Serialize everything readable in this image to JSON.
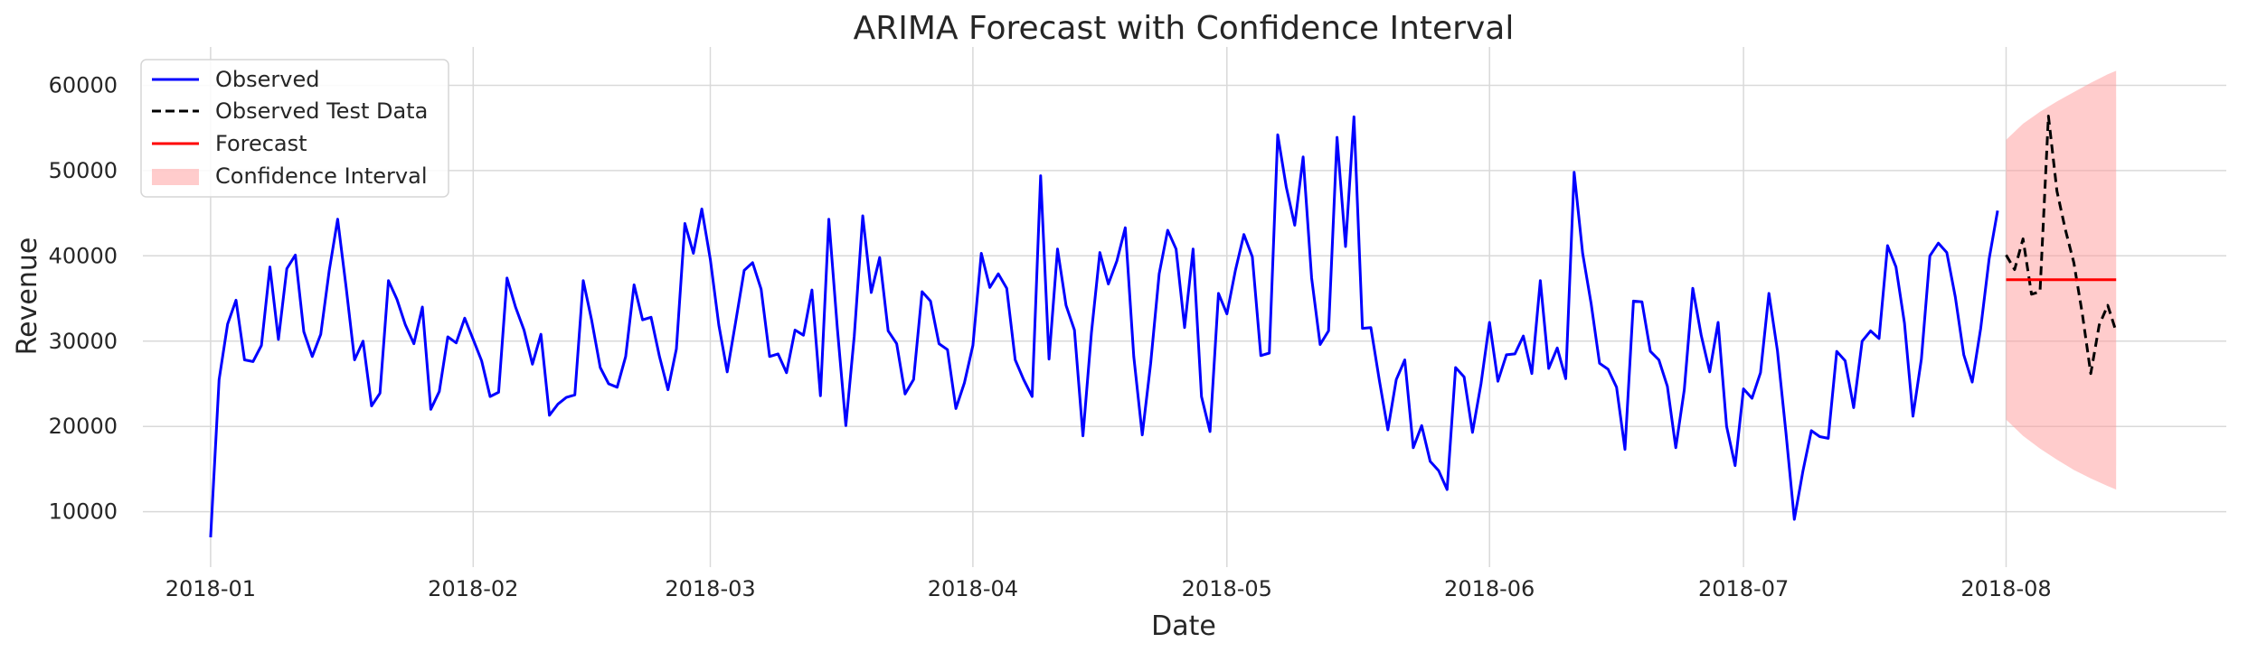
{
  "chart_data": {
    "type": "line",
    "title": "ARIMA Forecast with Confidence Interval",
    "xlabel": "Date",
    "ylabel": "Revenue",
    "x_range": [
      "2017-12-24",
      "2018-08-27"
    ],
    "ylim": [
      3500,
      64500
    ],
    "grid": true,
    "legend_position": "top-left",
    "x_ticks": [
      {
        "date": "2018-01-01",
        "label": "2018-01"
      },
      {
        "date": "2018-02-01",
        "label": "2018-02"
      },
      {
        "date": "2018-03-01",
        "label": "2018-03"
      },
      {
        "date": "2018-04-01",
        "label": "2018-04"
      },
      {
        "date": "2018-05-01",
        "label": "2018-05"
      },
      {
        "date": "2018-06-01",
        "label": "2018-06"
      },
      {
        "date": "2018-07-01",
        "label": "2018-07"
      },
      {
        "date": "2018-08-01",
        "label": "2018-08"
      }
    ],
    "y_ticks": [
      10000,
      20000,
      30000,
      40000,
      50000,
      60000
    ],
    "y_tick_labels": [
      "10000",
      "20000",
      "30000",
      "40000",
      "50000",
      "60000"
    ],
    "legend": [
      {
        "label": "Observed",
        "style": "solid-line",
        "color": "#0000ff"
      },
      {
        "label": "Observed Test Data",
        "style": "dashed-line",
        "color": "#000000"
      },
      {
        "label": "Forecast",
        "style": "solid-line",
        "color": "#ff0000"
      },
      {
        "label": "Confidence Interval",
        "style": "patch",
        "color": "#ff9999"
      }
    ],
    "series": [
      {
        "name": "Observed",
        "color": "#0000ff",
        "style": "solid",
        "points": [
          [
            "2018-01-01",
            7000
          ],
          [
            "2018-01-02",
            25500
          ],
          [
            "2018-01-03",
            32000
          ],
          [
            "2018-01-04",
            34800
          ],
          [
            "2018-01-05",
            27800
          ],
          [
            "2018-01-06",
            27600
          ],
          [
            "2018-01-07",
            29500
          ],
          [
            "2018-01-08",
            38700
          ],
          [
            "2018-01-09",
            30200
          ],
          [
            "2018-01-10",
            38500
          ],
          [
            "2018-01-11",
            40100
          ],
          [
            "2018-01-12",
            31100
          ],
          [
            "2018-01-13",
            28200
          ],
          [
            "2018-01-14",
            30800
          ],
          [
            "2018-01-15",
            38200
          ],
          [
            "2018-01-16",
            44300
          ],
          [
            "2018-01-17",
            36300
          ],
          [
            "2018-01-18",
            27800
          ],
          [
            "2018-01-19",
            30000
          ],
          [
            "2018-01-20",
            22400
          ],
          [
            "2018-01-21",
            23900
          ],
          [
            "2018-01-22",
            37100
          ],
          [
            "2018-01-23",
            34900
          ],
          [
            "2018-01-24",
            31900
          ],
          [
            "2018-01-25",
            29700
          ],
          [
            "2018-01-26",
            34000
          ],
          [
            "2018-01-27",
            22000
          ],
          [
            "2018-01-28",
            24100
          ],
          [
            "2018-01-29",
            30500
          ],
          [
            "2018-01-30",
            29800
          ],
          [
            "2018-01-31",
            32700
          ],
          [
            "2018-02-01",
            30200
          ],
          [
            "2018-02-02",
            27700
          ],
          [
            "2018-02-03",
            23500
          ],
          [
            "2018-02-04",
            24000
          ],
          [
            "2018-02-05",
            37400
          ],
          [
            "2018-02-06",
            34000
          ],
          [
            "2018-02-07",
            31300
          ],
          [
            "2018-02-08",
            27300
          ],
          [
            "2018-02-09",
            30800
          ],
          [
            "2018-02-10",
            21300
          ],
          [
            "2018-02-11",
            22600
          ],
          [
            "2018-02-12",
            23400
          ],
          [
            "2018-02-13",
            23700
          ],
          [
            "2018-02-14",
            37100
          ],
          [
            "2018-02-15",
            32400
          ],
          [
            "2018-02-16",
            26900
          ],
          [
            "2018-02-17",
            25000
          ],
          [
            "2018-02-18",
            24600
          ],
          [
            "2018-02-19",
            28200
          ],
          [
            "2018-02-20",
            36600
          ],
          [
            "2018-02-21",
            32500
          ],
          [
            "2018-02-22",
            32800
          ],
          [
            "2018-02-23",
            28200
          ],
          [
            "2018-02-24",
            24300
          ],
          [
            "2018-02-25",
            29100
          ],
          [
            "2018-02-26",
            43800
          ],
          [
            "2018-02-27",
            40300
          ],
          [
            "2018-02-28",
            45500
          ],
          [
            "2018-03-01",
            39600
          ],
          [
            "2018-03-02",
            31900
          ],
          [
            "2018-03-03",
            26400
          ],
          [
            "2018-03-04",
            32300
          ],
          [
            "2018-03-05",
            38300
          ],
          [
            "2018-03-06",
            39200
          ],
          [
            "2018-03-07",
            36100
          ],
          [
            "2018-03-08",
            28200
          ],
          [
            "2018-03-09",
            28500
          ],
          [
            "2018-03-10",
            26300
          ],
          [
            "2018-03-11",
            31300
          ],
          [
            "2018-03-12",
            30700
          ],
          [
            "2018-03-13",
            36000
          ],
          [
            "2018-03-14",
            23600
          ],
          [
            "2018-03-15",
            44300
          ],
          [
            "2018-03-16",
            31500
          ],
          [
            "2018-03-17",
            20100
          ],
          [
            "2018-03-18",
            30600
          ],
          [
            "2018-03-19",
            44700
          ],
          [
            "2018-03-20",
            35700
          ],
          [
            "2018-03-21",
            39800
          ],
          [
            "2018-03-22",
            31200
          ],
          [
            "2018-03-23",
            29700
          ],
          [
            "2018-03-24",
            23800
          ],
          [
            "2018-03-25",
            25500
          ],
          [
            "2018-03-26",
            35800
          ],
          [
            "2018-03-27",
            34700
          ],
          [
            "2018-03-28",
            29700
          ],
          [
            "2018-03-29",
            29000
          ],
          [
            "2018-03-30",
            22100
          ],
          [
            "2018-03-31",
            25100
          ],
          [
            "2018-04-01",
            29500
          ],
          [
            "2018-04-02",
            40300
          ],
          [
            "2018-04-03",
            36300
          ],
          [
            "2018-04-04",
            37900
          ],
          [
            "2018-04-05",
            36200
          ],
          [
            "2018-04-06",
            27800
          ],
          [
            "2018-04-07",
            25500
          ],
          [
            "2018-04-08",
            23500
          ],
          [
            "2018-04-09",
            49400
          ],
          [
            "2018-04-10",
            27900
          ],
          [
            "2018-04-11",
            40800
          ],
          [
            "2018-04-12",
            34200
          ],
          [
            "2018-04-13",
            31300
          ],
          [
            "2018-04-14",
            18900
          ],
          [
            "2018-04-15",
            31000
          ],
          [
            "2018-04-16",
            40400
          ],
          [
            "2018-04-17",
            36700
          ],
          [
            "2018-04-18",
            39400
          ],
          [
            "2018-04-19",
            43300
          ],
          [
            "2018-04-20",
            28200
          ],
          [
            "2018-04-21",
            19000
          ],
          [
            "2018-04-22",
            27400
          ],
          [
            "2018-04-23",
            37900
          ],
          [
            "2018-04-24",
            43000
          ],
          [
            "2018-04-25",
            40800
          ],
          [
            "2018-04-26",
            31600
          ],
          [
            "2018-04-27",
            40800
          ],
          [
            "2018-04-28",
            23500
          ],
          [
            "2018-04-29",
            19400
          ],
          [
            "2018-04-30",
            35600
          ],
          [
            "2018-05-01",
            33200
          ],
          [
            "2018-05-02",
            38300
          ],
          [
            "2018-05-03",
            42500
          ],
          [
            "2018-05-04",
            39900
          ],
          [
            "2018-05-05",
            28300
          ],
          [
            "2018-05-06",
            28600
          ],
          [
            "2018-05-07",
            54200
          ],
          [
            "2018-05-08",
            48100
          ],
          [
            "2018-05-09",
            43600
          ],
          [
            "2018-05-10",
            51600
          ],
          [
            "2018-05-11",
            37400
          ],
          [
            "2018-05-12",
            29600
          ],
          [
            "2018-05-13",
            31200
          ],
          [
            "2018-05-14",
            53900
          ],
          [
            "2018-05-15",
            41100
          ],
          [
            "2018-05-16",
            56300
          ],
          [
            "2018-05-17",
            31500
          ],
          [
            "2018-05-18",
            31600
          ],
          [
            "2018-05-19",
            25400
          ],
          [
            "2018-05-20",
            19600
          ],
          [
            "2018-05-21",
            25500
          ],
          [
            "2018-05-22",
            27800
          ],
          [
            "2018-05-23",
            17500
          ],
          [
            "2018-05-24",
            20100
          ],
          [
            "2018-05-25",
            15900
          ],
          [
            "2018-05-26",
            14800
          ],
          [
            "2018-05-27",
            12600
          ],
          [
            "2018-05-28",
            26900
          ],
          [
            "2018-05-29",
            25800
          ],
          [
            "2018-05-30",
            19300
          ],
          [
            "2018-05-31",
            25000
          ],
          [
            "2018-06-01",
            32200
          ],
          [
            "2018-06-02",
            25300
          ],
          [
            "2018-06-03",
            28400
          ],
          [
            "2018-06-04",
            28500
          ],
          [
            "2018-06-05",
            30600
          ],
          [
            "2018-06-06",
            26200
          ],
          [
            "2018-06-07",
            37100
          ],
          [
            "2018-06-08",
            26800
          ],
          [
            "2018-06-09",
            29200
          ],
          [
            "2018-06-10",
            25600
          ],
          [
            "2018-06-11",
            49800
          ],
          [
            "2018-06-12",
            40300
          ],
          [
            "2018-06-13",
            34400
          ],
          [
            "2018-06-14",
            27400
          ],
          [
            "2018-06-15",
            26700
          ],
          [
            "2018-06-16",
            24600
          ],
          [
            "2018-06-17",
            17300
          ],
          [
            "2018-06-18",
            34700
          ],
          [
            "2018-06-19",
            34600
          ],
          [
            "2018-06-20",
            28800
          ],
          [
            "2018-06-21",
            27800
          ],
          [
            "2018-06-22",
            24700
          ],
          [
            "2018-06-23",
            17500
          ],
          [
            "2018-06-24",
            24300
          ],
          [
            "2018-06-25",
            36200
          ],
          [
            "2018-06-26",
            30700
          ],
          [
            "2018-06-27",
            26400
          ],
          [
            "2018-06-28",
            32200
          ],
          [
            "2018-06-29",
            20000
          ],
          [
            "2018-06-30",
            15400
          ],
          [
            "2018-07-01",
            24400
          ],
          [
            "2018-07-02",
            23300
          ],
          [
            "2018-07-03",
            26300
          ],
          [
            "2018-07-04",
            35600
          ],
          [
            "2018-07-05",
            28900
          ],
          [
            "2018-07-06",
            19300
          ],
          [
            "2018-07-07",
            9100
          ],
          [
            "2018-07-08",
            14700
          ],
          [
            "2018-07-09",
            19500
          ],
          [
            "2018-07-10",
            18800
          ],
          [
            "2018-07-11",
            18600
          ],
          [
            "2018-07-12",
            28800
          ],
          [
            "2018-07-13",
            27700
          ],
          [
            "2018-07-14",
            22200
          ],
          [
            "2018-07-15",
            30000
          ],
          [
            "2018-07-16",
            31200
          ],
          [
            "2018-07-17",
            30300
          ],
          [
            "2018-07-18",
            41200
          ],
          [
            "2018-07-19",
            38700
          ],
          [
            "2018-07-20",
            32100
          ],
          [
            "2018-07-21",
            21200
          ],
          [
            "2018-07-22",
            27900
          ],
          [
            "2018-07-23",
            40000
          ],
          [
            "2018-07-24",
            41500
          ],
          [
            "2018-07-25",
            40400
          ],
          [
            "2018-07-26",
            35200
          ],
          [
            "2018-07-27",
            28400
          ],
          [
            "2018-07-28",
            25200
          ],
          [
            "2018-07-29",
            31500
          ],
          [
            "2018-07-30",
            39700
          ],
          [
            "2018-07-31",
            45300
          ]
        ]
      },
      {
        "name": "Observed Test Data",
        "color": "#000000",
        "style": "dashed",
        "points": [
          [
            "2018-08-01",
            40100
          ],
          [
            "2018-08-02",
            38400
          ],
          [
            "2018-08-03",
            42000
          ],
          [
            "2018-08-04",
            35500
          ],
          [
            "2018-08-05",
            35800
          ],
          [
            "2018-08-06",
            56400
          ],
          [
            "2018-08-07",
            47600
          ],
          [
            "2018-08-08",
            43100
          ],
          [
            "2018-08-09",
            39200
          ],
          [
            "2018-08-10",
            33200
          ],
          [
            "2018-08-11",
            26200
          ],
          [
            "2018-08-12",
            31900
          ],
          [
            "2018-08-13",
            34200
          ],
          [
            "2018-08-14",
            31100
          ]
        ]
      },
      {
        "name": "Forecast",
        "color": "#ff0000",
        "style": "solid",
        "points": [
          [
            "2018-08-01",
            37200
          ],
          [
            "2018-08-14",
            37200
          ]
        ]
      }
    ],
    "confidence_interval": {
      "name": "Confidence Interval",
      "color": "#ff9999",
      "opacity": 0.5,
      "points": [
        [
          "2018-08-01",
          20800,
          53600
        ],
        [
          "2018-08-03",
          18900,
          55500
        ],
        [
          "2018-08-05",
          17400,
          56900
        ],
        [
          "2018-08-07",
          16100,
          58100
        ],
        [
          "2018-08-09",
          14900,
          59200
        ],
        [
          "2018-08-11",
          13900,
          60300
        ],
        [
          "2018-08-13",
          13000,
          61300
        ],
        [
          "2018-08-14",
          12600,
          61700
        ]
      ]
    }
  }
}
